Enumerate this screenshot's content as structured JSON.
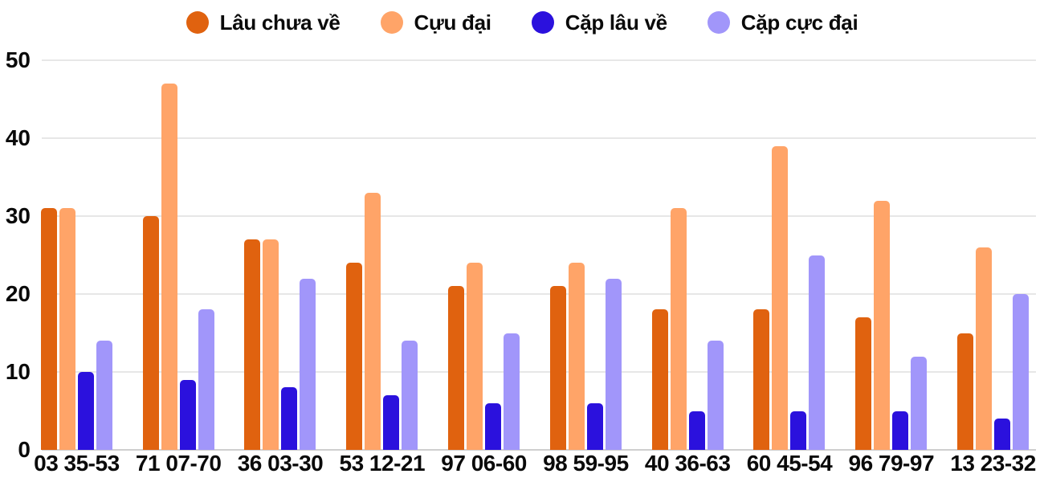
{
  "legend": {
    "position": "top",
    "items": [
      {
        "label": "Lâu chưa về",
        "color": "#E0620F"
      },
      {
        "label": "Cựu đại",
        "color": "#FFA468"
      },
      {
        "label": "Cặp lâu về",
        "color": "#2B11DD"
      },
      {
        "label": "Cặp cực đại",
        "color": "#A196FA"
      }
    ]
  },
  "chart_data": {
    "type": "bar",
    "title": "",
    "xlabel": "",
    "ylabel": "",
    "categories": [
      "03 35-53",
      "71 07-70",
      "36 03-30",
      "53 12-21",
      "97 06-60",
      "98 59-95",
      "40 36-63",
      "60 45-54",
      "96 79-97",
      "13 23-32"
    ],
    "series": [
      {
        "name": "Lâu chưa về",
        "color": "#E0620F",
        "values": [
          31,
          30,
          27,
          24,
          21,
          21,
          18,
          18,
          17,
          15
        ]
      },
      {
        "name": "Cựu đại",
        "color": "#FFA468",
        "values": [
          31,
          47,
          27,
          33,
          24,
          24,
          31,
          39,
          32,
          26
        ]
      },
      {
        "name": "Cặp lâu về",
        "color": "#2B11DD",
        "values": [
          10,
          9,
          8,
          7,
          6,
          6,
          5,
          5,
          5,
          4
        ]
      },
      {
        "name": "Cặp cực đại",
        "color": "#A196FA",
        "values": [
          14,
          18,
          22,
          14,
          15,
          22,
          14,
          25,
          12,
          20
        ]
      }
    ],
    "ylim": [
      0,
      50
    ],
    "yticks": [
      0,
      10,
      20,
      30,
      40,
      50
    ],
    "grid": true,
    "legend_position": "top",
    "text_color": "#0a0a0a",
    "gridline_color": "#e7e7e7"
  }
}
